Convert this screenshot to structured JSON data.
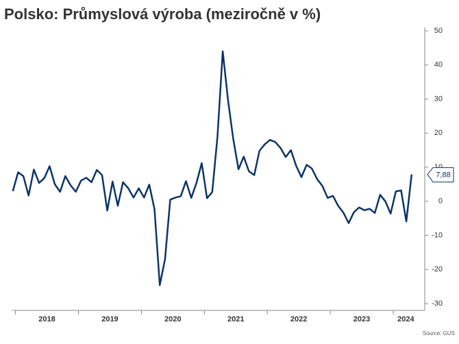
{
  "chart_data": {
    "type": "line",
    "title": "Polsko: Průmyslová výroba (meziročně v %)",
    "source": "Source: GUS",
    "color": "#0b3466",
    "x": [
      2017.958,
      2018.042,
      2018.125,
      2018.208,
      2018.292,
      2018.375,
      2018.458,
      2018.542,
      2018.625,
      2018.708,
      2018.792,
      2018.875,
      2018.958,
      2019.042,
      2019.125,
      2019.208,
      2019.292,
      2019.375,
      2019.458,
      2019.542,
      2019.625,
      2019.708,
      2019.792,
      2019.875,
      2019.958,
      2020.042,
      2020.125,
      2020.208,
      2020.292,
      2020.375,
      2020.458,
      2020.542,
      2020.625,
      2020.708,
      2020.792,
      2020.875,
      2020.958,
      2021.042,
      2021.125,
      2021.208,
      2021.292,
      2021.375,
      2021.458,
      2021.542,
      2021.625,
      2021.708,
      2021.792,
      2021.875,
      2021.958,
      2022.042,
      2022.125,
      2022.208,
      2022.292,
      2022.375,
      2022.458,
      2022.542,
      2022.625,
      2022.708,
      2022.792,
      2022.875,
      2022.958,
      2023.042,
      2023.125,
      2023.208,
      2023.292,
      2023.375,
      2023.458,
      2023.542,
      2023.625,
      2023.708,
      2023.792,
      2023.875,
      2023.958,
      2024.042,
      2024.125,
      2024.208,
      2024.292
    ],
    "values": [
      3.0,
      8.5,
      7.4,
      1.7,
      9.3,
      5.4,
      6.8,
      10.3,
      5.0,
      2.8,
      7.4,
      4.7,
      2.8,
      6.1,
      6.9,
      5.6,
      9.2,
      7.7,
      -2.7,
      5.8,
      -1.3,
      5.6,
      3.8,
      1.1,
      3.8,
      1.1,
      4.9,
      -2.3,
      -24.6,
      -17.0,
      0.5,
      1.1,
      1.5,
      5.9,
      1.0,
      5.4,
      11.2,
      0.9,
      2.7,
      18.9,
      44.0,
      29.8,
      18.4,
      9.4,
      13.1,
      8.8,
      7.7,
      14.8,
      16.7,
      18.0,
      17.4,
      15.7,
      13.0,
      15.0,
      10.4,
      7.1,
      10.7,
      9.6,
      6.5,
      4.5,
      1.0,
      1.6,
      -1.3,
      -3.3,
      -6.4,
      -3.2,
      -1.8,
      -2.6,
      -2.2,
      -3.4,
      1.9,
      0.0,
      -3.6,
      2.9,
      3.2,
      -5.9,
      7.88
    ],
    "value_labels": [
      null,
      null,
      null,
      null,
      null,
      null,
      null,
      null,
      null,
      null,
      null,
      null,
      null,
      null,
      null,
      null,
      null,
      null,
      null,
      null,
      null,
      null,
      null,
      null,
      null,
      null,
      null,
      null,
      null,
      null,
      null,
      null,
      null,
      null,
      null,
      null,
      null,
      null,
      null,
      null,
      null,
      null,
      null,
      null,
      null,
      null,
      null,
      null,
      null,
      null,
      null,
      null,
      null,
      null,
      null,
      null,
      null,
      null,
      null,
      null,
      null,
      null,
      null,
      null,
      null,
      null,
      null,
      null,
      null,
      null,
      null,
      null,
      null,
      null,
      null,
      null,
      "7,88"
    ],
    "xlim": [
      2017.95,
      2024.37
    ],
    "xticks": [
      {
        "value": 2018.5,
        "label": "2018"
      },
      {
        "value": 2019.5,
        "label": "2019"
      },
      {
        "value": 2020.5,
        "label": "2020"
      },
      {
        "value": 2021.5,
        "label": "2021"
      },
      {
        "value": 2022.5,
        "label": "2022"
      },
      {
        "value": 2023.5,
        "label": "2023"
      },
      {
        "value": 2024.2,
        "label": "2024"
      }
    ],
    "xminor": [
      2018,
      2019,
      2020,
      2021,
      2022,
      2023,
      2024
    ],
    "ylim": [
      -32,
      50
    ],
    "yticks": [
      -30,
      -20,
      -10,
      0,
      10,
      20,
      30,
      40,
      50
    ],
    "grid": false
  }
}
